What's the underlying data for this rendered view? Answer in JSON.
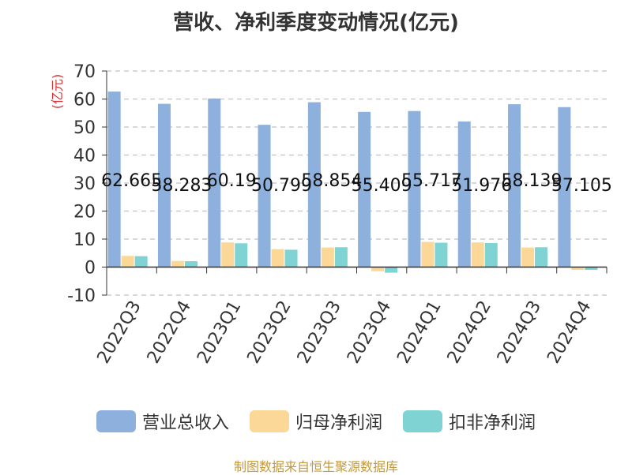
{
  "title": "营收、净利季度变动情况(亿元)",
  "source": "制图数据来自恒生聚源数据库",
  "colors": {
    "revenue": "#8eb0dc",
    "net_profit": "#fcd898",
    "deducted_net_profit": "#7fd3d3",
    "axis_text": "#333333",
    "unit_text": "#e03030",
    "grid": "#cccccc"
  },
  "chart_data": {
    "type": "bar",
    "title": "营收、净利季度变动情况(亿元)",
    "ylabel": "(亿元)",
    "ylim": [
      -10,
      70
    ],
    "yticks": [
      -10,
      0,
      10,
      20,
      30,
      40,
      50,
      60,
      70
    ],
    "categories": [
      "2022Q3",
      "2022Q4",
      "2023Q1",
      "2023Q2",
      "2023Q3",
      "2023Q4",
      "2024Q1",
      "2024Q2",
      "2024Q3",
      "2024Q4"
    ],
    "series": [
      {
        "name": "营业总收入",
        "values": [
          62.665,
          58.283,
          60.19,
          50.799,
          58.854,
          55.409,
          55.717,
          51.976,
          58.139,
          57.105
        ],
        "labels": [
          "62.665",
          "58.283",
          "60.19",
          "50.799",
          "58.854",
          "55.409",
          "55.717",
          "51.976",
          "58.139",
          "57.105"
        ]
      },
      {
        "name": "归母净利润",
        "values": [
          4.0,
          2.2,
          8.8,
          6.4,
          7.0,
          -1.5,
          9.0,
          8.8,
          7.0,
          -1.0
        ]
      },
      {
        "name": "扣非净利润",
        "values": [
          3.9,
          2.1,
          8.5,
          6.2,
          7.1,
          -2.0,
          8.7,
          8.6,
          7.1,
          -1.0
        ]
      }
    ],
    "grid": true,
    "legend": "bottom"
  }
}
